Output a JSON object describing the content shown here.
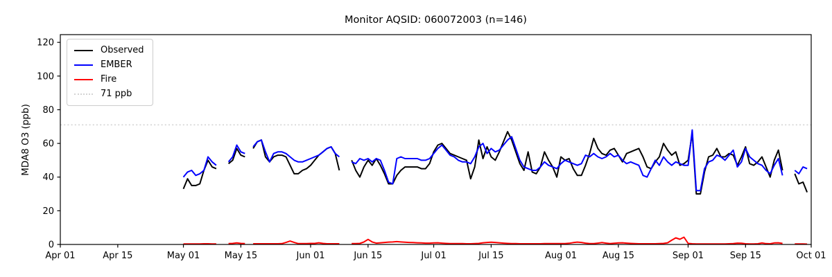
{
  "chart_data": {
    "type": "line",
    "title": "Monitor AQSID: 060072003 (n=146)",
    "xlabel": "",
    "ylabel": "MDA8 O3 (ppb)",
    "ylim": [
      0,
      124.6
    ],
    "y_ticks": [
      0,
      20,
      40,
      60,
      80,
      100,
      120
    ],
    "grid": false,
    "sample_count": 146,
    "x_axis": {
      "tick_labels": [
        "Apr 01",
        "Apr 15",
        "May 01",
        "May 15",
        "Jun 01",
        "Jun 15",
        "Jul 01",
        "Jul 15",
        "Aug 01",
        "Aug 15",
        "Sep 01",
        "Sep 15",
        "Oct 01"
      ],
      "tick_day_offsets": [
        0,
        14,
        30,
        44,
        61,
        75,
        91,
        105,
        122,
        136,
        153,
        167,
        183
      ],
      "total_days": 183
    },
    "threshold": {
      "label": "71 ppb",
      "value": 71,
      "color": "#d3d3d3",
      "style": "dotted"
    },
    "legend": {
      "position": "upper-left",
      "entries": [
        "Observed",
        "EMBER",
        "Fire",
        "71 ppb"
      ]
    },
    "series_start_date": "May 01",
    "series_start_day_offset": 30,
    "series_cadence": "daily",
    "series": [
      {
        "name": "Observed",
        "color": "#000000",
        "values": [
          33,
          39,
          35,
          35,
          36,
          44,
          50,
          46,
          45,
          null,
          null,
          48,
          50,
          57,
          53,
          52,
          null,
          57,
          61,
          62,
          52,
          49,
          52,
          53,
          53,
          52,
          47,
          42,
          42,
          44,
          45,
          47,
          50,
          53,
          55,
          57,
          58,
          54,
          44,
          null,
          null,
          50,
          44,
          40,
          46,
          50,
          47,
          51,
          47,
          42,
          36,
          36,
          41,
          44,
          46,
          46,
          46,
          46,
          45,
          45,
          48,
          55,
          59,
          60,
          57,
          54,
          53,
          52,
          51,
          50,
          39,
          46,
          62,
          51,
          58,
          52,
          50,
          55,
          61,
          67,
          62,
          55,
          48,
          44,
          55,
          43,
          42,
          46,
          55,
          50,
          46,
          40,
          52,
          50,
          51,
          45,
          41,
          41,
          47,
          54,
          63,
          57,
          54,
          53,
          56,
          57,
          53,
          49,
          54,
          55,
          56,
          57,
          52,
          46,
          45,
          49,
          52,
          60,
          56,
          53,
          55,
          47,
          48,
          50,
          66,
          30,
          30,
          43,
          52,
          53,
          57,
          52,
          52,
          54,
          53,
          47,
          52,
          58,
          48,
          47,
          49,
          52,
          46,
          40,
          50,
          56,
          44,
          null,
          null,
          42,
          36,
          37,
          31
        ]
      },
      {
        "name": "EMBER",
        "color": "#0000ff",
        "values": [
          40,
          43,
          44,
          41,
          42,
          44,
          52,
          49,
          47,
          null,
          null,
          49,
          52,
          59,
          55,
          54,
          null,
          58,
          61,
          62,
          55,
          49,
          54,
          55,
          55,
          54,
          52,
          50,
          49,
          49,
          50,
          51,
          52,
          53,
          55,
          57,
          58,
          54,
          52,
          null,
          null,
          49,
          48,
          51,
          50,
          51,
          49,
          51,
          50,
          44,
          37,
          36,
          51,
          52,
          51,
          51,
          51,
          51,
          50,
          50,
          51,
          54,
          57,
          59,
          56,
          53,
          52,
          50,
          49,
          49,
          48,
          52,
          58,
          60,
          54,
          57,
          55,
          56,
          59,
          62,
          64,
          57,
          50,
          46,
          45,
          44,
          44,
          46,
          49,
          47,
          46,
          45,
          48,
          50,
          49,
          48,
          47,
          48,
          53,
          52,
          54,
          52,
          51,
          52,
          54,
          52,
          53,
          50,
          48,
          49,
          48,
          47,
          41,
          40,
          45,
          50,
          47,
          52,
          49,
          47,
          49,
          48,
          47,
          47,
          68,
          32,
          32,
          45,
          49,
          50,
          53,
          52,
          50,
          53,
          56,
          46,
          49,
          57,
          52,
          50,
          48,
          47,
          44,
          42,
          47,
          51,
          41,
          null,
          null,
          44,
          42,
          46,
          45
        ]
      },
      {
        "name": "Fire",
        "color": "#ff0000",
        "values": [
          0.3,
          0.3,
          0.3,
          0.3,
          0.3,
          0.4,
          0.4,
          0.3,
          0.3,
          null,
          null,
          0.5,
          0.6,
          0.9,
          0.6,
          0.5,
          null,
          0.4,
          0.4,
          0.4,
          0.4,
          0.4,
          0.4,
          0.4,
          0.5,
          1.2,
          2.0,
          1.2,
          0.5,
          0.5,
          0.5,
          0.6,
          0.6,
          1.0,
          0.6,
          0.4,
          0.4,
          0.4,
          0.4,
          null,
          null,
          0.5,
          0.5,
          0.6,
          1.5,
          3.0,
          1.5,
          0.8,
          1.0,
          1.2,
          1.4,
          1.5,
          1.7,
          1.5,
          1.3,
          1.2,
          1.1,
          1.0,
          0.9,
          0.8,
          0.8,
          0.9,
          1.0,
          0.8,
          0.6,
          0.5,
          0.5,
          0.5,
          0.5,
          0.4,
          0.4,
          0.5,
          0.6,
          1.0,
          1.2,
          1.3,
          1.2,
          1.0,
          0.8,
          0.6,
          0.5,
          0.5,
          0.4,
          0.4,
          0.4,
          0.4,
          0.4,
          0.4,
          0.5,
          0.5,
          0.5,
          0.5,
          0.5,
          0.5,
          0.7,
          1.1,
          1.4,
          1.2,
          0.8,
          0.5,
          0.5,
          0.8,
          1.1,
          0.8,
          0.5,
          0.7,
          0.9,
          1.0,
          0.8,
          0.6,
          0.5,
          0.4,
          0.4,
          0.4,
          0.4,
          0.4,
          0.5,
          0.6,
          1.0,
          2.5,
          3.9,
          3.1,
          4.3,
          0.6,
          0.4,
          0.3,
          0.3,
          0.3,
          0.3,
          0.3,
          0.3,
          0.3,
          0.3,
          0.4,
          0.5,
          0.8,
          0.7,
          0.4,
          0.3,
          0.3,
          0.4,
          0.9,
          0.5,
          0.4,
          0.9,
          1.0,
          0.6,
          null,
          null,
          0.3,
          0.3,
          0.3,
          0.2
        ]
      }
    ]
  }
}
